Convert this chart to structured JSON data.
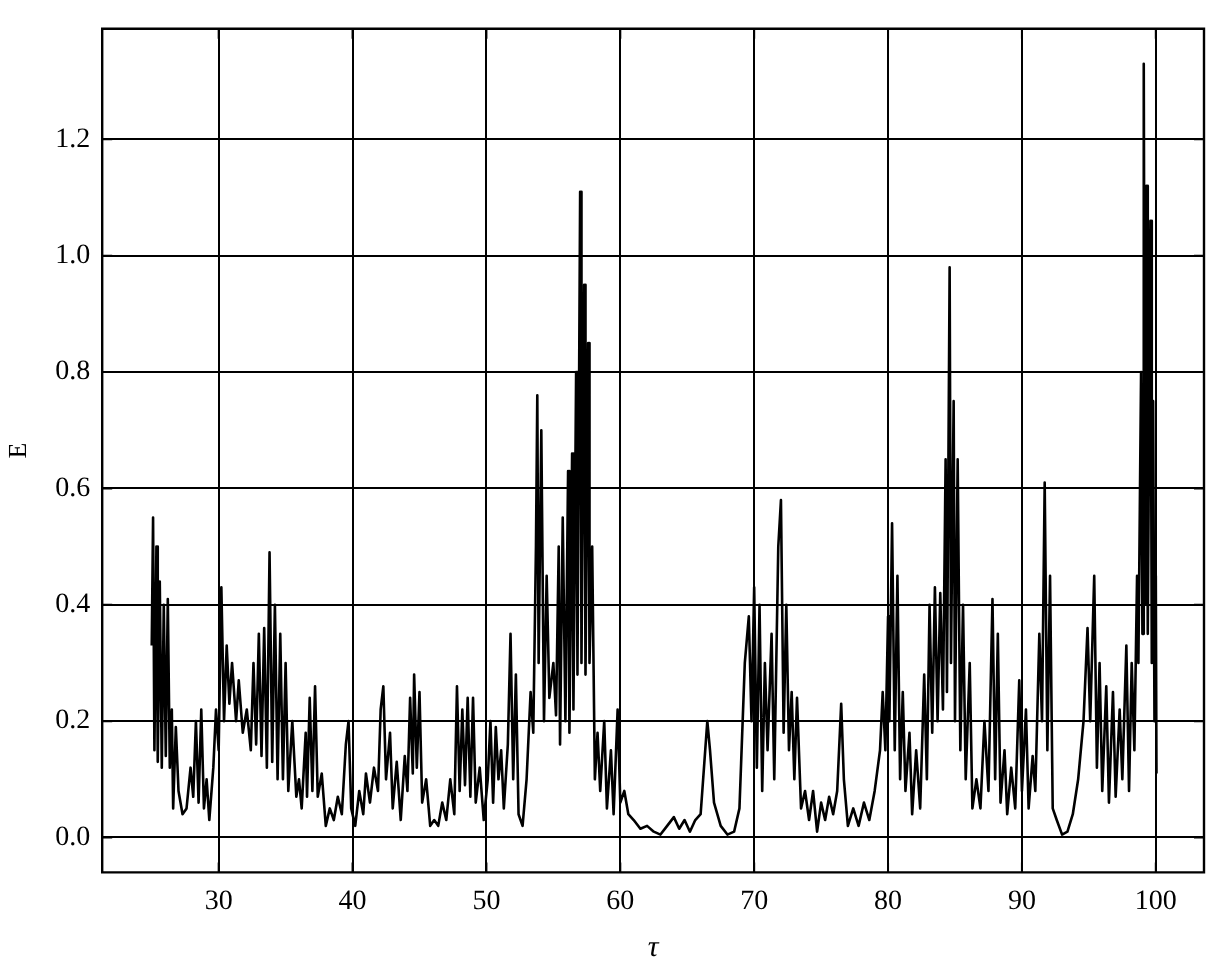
{
  "chart_data": {
    "type": "line",
    "xlabel": "τ",
    "ylabel": "E",
    "xlim": [
      21.3,
      103.6
    ],
    "xticks": [
      30,
      40,
      50,
      60,
      70,
      80,
      90,
      100
    ],
    "ylim": [
      -0.06,
      1.39
    ],
    "yticks": [
      {
        "value": 0,
        "label": "0.0"
      },
      {
        "value": 0.2,
        "label": "0.2"
      },
      {
        "value": 0.4,
        "label": "0.4"
      },
      {
        "value": 0.6,
        "label": "0.6"
      },
      {
        "value": 0.8,
        "label": "0.8"
      },
      {
        "value": 1,
        "label": "1.0"
      },
      {
        "value": 1.2,
        "label": "1.2"
      }
    ],
    "grid": true,
    "legend": false,
    "marker": "none",
    "line_style": "solid",
    "x": [
      25.0,
      25.1,
      25.2,
      25.35,
      25.45,
      25.6,
      25.75,
      25.9,
      26.05,
      26.2,
      26.35,
      26.5,
      26.6,
      26.8,
      27.0,
      27.3,
      27.6,
      27.9,
      28.1,
      28.3,
      28.5,
      28.7,
      28.9,
      29.1,
      29.3,
      29.6,
      29.8,
      30.0,
      30.2,
      30.4,
      30.6,
      30.8,
      31.0,
      31.3,
      31.5,
      31.8,
      32.1,
      32.4,
      32.6,
      32.8,
      33.0,
      33.2,
      33.4,
      33.6,
      33.8,
      34.0,
      34.2,
      34.4,
      34.6,
      34.8,
      35.0,
      35.2,
      35.5,
      35.8,
      36.0,
      36.2,
      36.5,
      36.6,
      36.8,
      37.0,
      37.2,
      37.4,
      37.7,
      38.0,
      38.3,
      38.6,
      38.9,
      39.2,
      39.5,
      39.7,
      39.9,
      40.2,
      40.5,
      40.8,
      41.0,
      41.3,
      41.6,
      41.9,
      42.1,
      42.3,
      42.5,
      42.8,
      43.0,
      43.3,
      43.6,
      43.9,
      44.1,
      44.3,
      44.5,
      44.6,
      44.8,
      45.0,
      45.2,
      45.5,
      45.8,
      46.1,
      46.4,
      46.7,
      47.0,
      47.3,
      47.6,
      47.8,
      48.0,
      48.2,
      48.4,
      48.6,
      48.8,
      49.0,
      49.2,
      49.5,
      49.8,
      50.1,
      50.3,
      50.5,
      50.7,
      50.9,
      51.1,
      51.3,
      51.6,
      51.8,
      52.0,
      52.2,
      52.4,
      52.7,
      53.0,
      53.3,
      53.5,
      53.7,
      53.8,
      53.9,
      54.1,
      54.3,
      54.5,
      54.7,
      55.0,
      55.2,
      55.4,
      55.5,
      55.7,
      55.9,
      56.1,
      56.2,
      56.4,
      56.5,
      56.7,
      56.8,
      57.0,
      57.1,
      57.3,
      57.4,
      57.6,
      57.7,
      57.9,
      58.1,
      58.3,
      58.5,
      58.8,
      59.0,
      59.3,
      59.5,
      59.8,
      60.0,
      60.3,
      60.6,
      61.0,
      61.5,
      62.0,
      62.5,
      63.0,
      63.5,
      64.0,
      64.4,
      64.8,
      65.2,
      65.6,
      66.0,
      66.5,
      66.7,
      67.0,
      67.5,
      68.0,
      68.5,
      68.9,
      69.3,
      69.6,
      69.8,
      70.0,
      70.2,
      70.4,
      70.6,
      70.8,
      71.0,
      71.3,
      71.5,
      71.8,
      72.0,
      72.2,
      72.4,
      72.6,
      72.8,
      73.0,
      73.2,
      73.5,
      73.8,
      74.1,
      74.4,
      74.7,
      75.0,
      75.3,
      75.6,
      75.9,
      76.2,
      76.5,
      76.7,
      77.0,
      77.4,
      77.8,
      78.2,
      78.6,
      79.0,
      79.4,
      79.6,
      79.8,
      80.0,
      80.1,
      80.3,
      80.5,
      80.7,
      80.9,
      81.1,
      81.3,
      81.6,
      81.8,
      82.1,
      82.4,
      82.7,
      82.9,
      83.1,
      83.3,
      83.5,
      83.7,
      83.9,
      84.1,
      84.3,
      84.4,
      84.6,
      84.7,
      84.9,
      85.0,
      85.2,
      85.4,
      85.6,
      85.8,
      86.1,
      86.3,
      86.6,
      86.9,
      87.2,
      87.5,
      87.8,
      88.0,
      88.2,
      88.4,
      88.7,
      88.9,
      89.2,
      89.5,
      89.8,
      90.0,
      90.3,
      90.5,
      90.8,
      91.0,
      91.3,
      91.5,
      91.7,
      91.9,
      92.1,
      92.3,
      92.6,
      93.0,
      93.4,
      93.8,
      94.2,
      94.6,
      94.9,
      95.1,
      95.4,
      95.6,
      95.8,
      96.0,
      96.3,
      96.5,
      96.8,
      97.0,
      97.3,
      97.5,
      97.8,
      98.0,
      98.2,
      98.4,
      98.6,
      98.7,
      98.9,
      99.0,
      99.1,
      99.2,
      99.3,
      99.4,
      99.6,
      99.7,
      99.8,
      99.9,
      100.0,
      100.05
    ],
    "series": [
      {
        "color": "#000000",
        "values": [
          0.33,
          0.55,
          0.15,
          0.5,
          0.13,
          0.44,
          0.12,
          0.4,
          0.14,
          0.41,
          0.12,
          0.22,
          0.05,
          0.19,
          0.08,
          0.04,
          0.05,
          0.12,
          0.07,
          0.2,
          0.06,
          0.22,
          0.05,
          0.1,
          0.03,
          0.12,
          0.22,
          0.15,
          0.43,
          0.2,
          0.33,
          0.23,
          0.3,
          0.2,
          0.27,
          0.18,
          0.22,
          0.15,
          0.3,
          0.16,
          0.35,
          0.14,
          0.36,
          0.12,
          0.49,
          0.13,
          0.4,
          0.1,
          0.35,
          0.1,
          0.3,
          0.08,
          0.2,
          0.07,
          0.1,
          0.05,
          0.18,
          0.07,
          0.24,
          0.08,
          0.26,
          0.07,
          0.11,
          0.02,
          0.05,
          0.03,
          0.07,
          0.04,
          0.16,
          0.2,
          0.05,
          0.02,
          0.08,
          0.04,
          0.11,
          0.06,
          0.12,
          0.08,
          0.22,
          0.26,
          0.1,
          0.18,
          0.05,
          0.13,
          0.03,
          0.14,
          0.08,
          0.24,
          0.11,
          0.28,
          0.12,
          0.25,
          0.06,
          0.1,
          0.02,
          0.03,
          0.02,
          0.06,
          0.03,
          0.1,
          0.04,
          0.26,
          0.08,
          0.22,
          0.09,
          0.24,
          0.07,
          0.24,
          0.06,
          0.12,
          0.03,
          0.1,
          0.2,
          0.06,
          0.19,
          0.1,
          0.15,
          0.05,
          0.16,
          0.35,
          0.1,
          0.28,
          0.04,
          0.02,
          0.1,
          0.25,
          0.18,
          0.5,
          0.76,
          0.3,
          0.7,
          0.2,
          0.45,
          0.24,
          0.3,
          0.21,
          0.5,
          0.16,
          0.55,
          0.2,
          0.63,
          0.18,
          0.66,
          0.22,
          0.8,
          0.28,
          1.11,
          0.3,
          0.95,
          0.28,
          0.85,
          0.3,
          0.5,
          0.1,
          0.18,
          0.08,
          0.2,
          0.05,
          0.15,
          0.04,
          0.22,
          0.06,
          0.08,
          0.04,
          0.03,
          0.015,
          0.02,
          0.01,
          0.005,
          0.02,
          0.035,
          0.015,
          0.03,
          0.01,
          0.03,
          0.04,
          0.2,
          0.15,
          0.06,
          0.02,
          0.005,
          0.01,
          0.05,
          0.3,
          0.38,
          0.2,
          0.43,
          0.12,
          0.4,
          0.08,
          0.3,
          0.15,
          0.35,
          0.1,
          0.5,
          0.58,
          0.18,
          0.4,
          0.15,
          0.25,
          0.1,
          0.24,
          0.05,
          0.08,
          0.03,
          0.08,
          0.01,
          0.06,
          0.03,
          0.07,
          0.04,
          0.08,
          0.23,
          0.1,
          0.02,
          0.05,
          0.02,
          0.06,
          0.03,
          0.08,
          0.15,
          0.25,
          0.15,
          0.38,
          0.2,
          0.54,
          0.15,
          0.45,
          0.1,
          0.25,
          0.08,
          0.18,
          0.04,
          0.15,
          0.05,
          0.28,
          0.1,
          0.4,
          0.18,
          0.43,
          0.2,
          0.42,
          0.22,
          0.65,
          0.25,
          0.98,
          0.3,
          0.75,
          0.2,
          0.65,
          0.15,
          0.4,
          0.1,
          0.3,
          0.05,
          0.1,
          0.05,
          0.2,
          0.08,
          0.41,
          0.1,
          0.35,
          0.06,
          0.15,
          0.04,
          0.12,
          0.05,
          0.27,
          0.08,
          0.22,
          0.05,
          0.14,
          0.08,
          0.35,
          0.2,
          0.61,
          0.15,
          0.45,
          0.05,
          0.03,
          0.005,
          0.01,
          0.04,
          0.1,
          0.2,
          0.36,
          0.2,
          0.45,
          0.12,
          0.3,
          0.08,
          0.26,
          0.06,
          0.25,
          0.07,
          0.22,
          0.1,
          0.33,
          0.08,
          0.3,
          0.15,
          0.45,
          0.3,
          0.8,
          0.35,
          1.33,
          0.4,
          1.12,
          0.35,
          1.06,
          0.3,
          0.75,
          0.2,
          0.45,
          0.11
        ]
      }
    ]
  }
}
